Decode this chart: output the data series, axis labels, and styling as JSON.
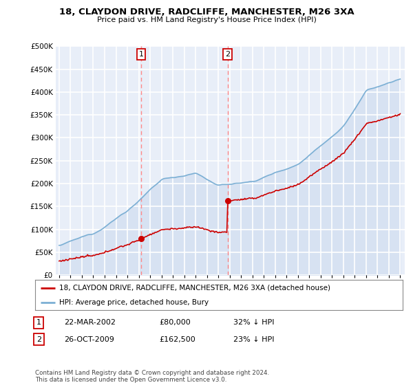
{
  "title": "18, CLAYDON DRIVE, RADCLIFFE, MANCHESTER, M26 3XA",
  "subtitle": "Price paid vs. HM Land Registry's House Price Index (HPI)",
  "ytick_values": [
    0,
    50000,
    100000,
    150000,
    200000,
    250000,
    300000,
    350000,
    400000,
    450000,
    500000
  ],
  "ylim": [
    0,
    500000
  ],
  "hpi_color": "#7bafd4",
  "sale_color": "#cc0000",
  "vline_color": "#ff8888",
  "sale1_year": 2002.22,
  "sale1_price": 80000,
  "sale2_year": 2009.82,
  "sale2_price": 162500,
  "legend_sale_label": "18, CLAYDON DRIVE, RADCLIFFE, MANCHESTER, M26 3XA (detached house)",
  "legend_hpi_label": "HPI: Average price, detached house, Bury",
  "table_row1": [
    "1",
    "22-MAR-2002",
    "£80,000",
    "32% ↓ HPI"
  ],
  "table_row2": [
    "2",
    "26-OCT-2009",
    "£162,500",
    "23% ↓ HPI"
  ],
  "footnote": "Contains HM Land Registry data © Crown copyright and database right 2024.\nThis data is licensed under the Open Government Licence v3.0.",
  "plot_bg": "#e8eef8",
  "grid_color": "#ffffff",
  "hpi_fill_color": "#c8d8ee"
}
